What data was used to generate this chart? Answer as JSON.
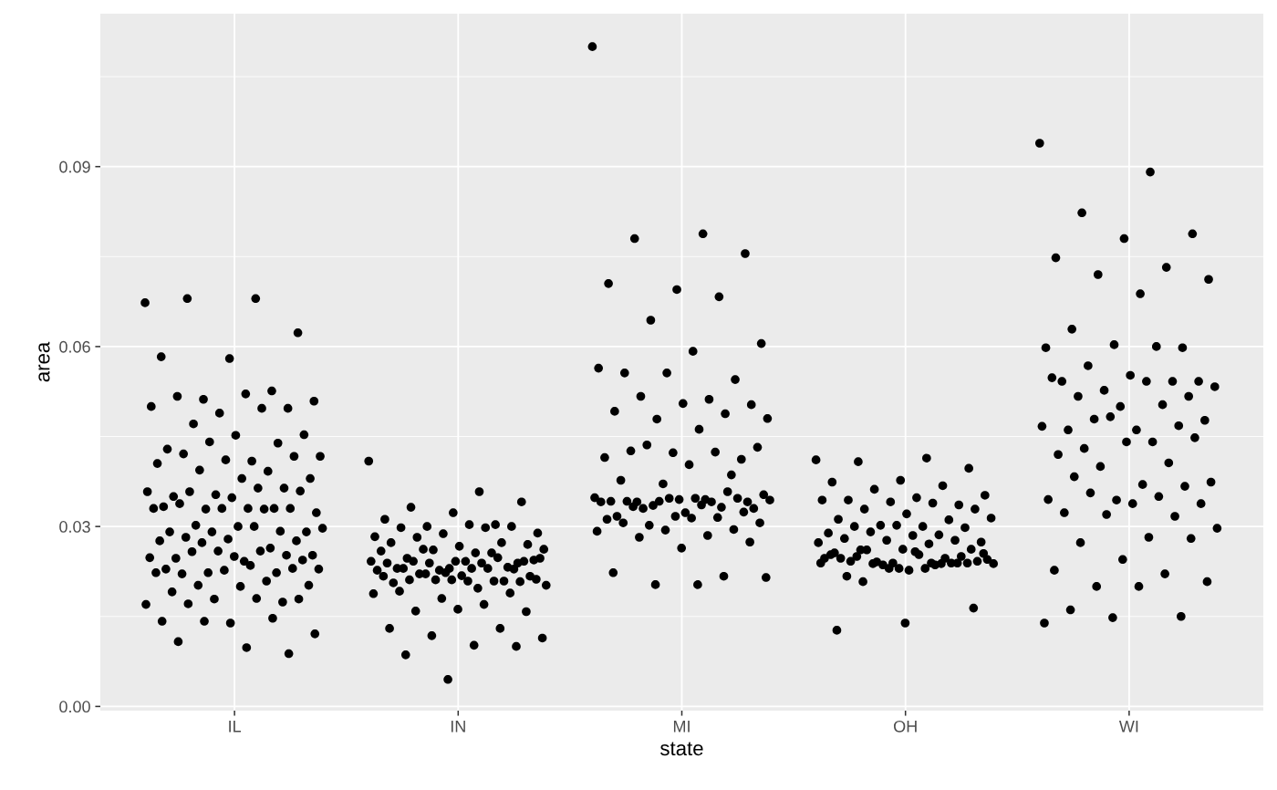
{
  "chart_data": {
    "type": "scatter",
    "xlabel": "state",
    "ylabel": "area",
    "categories": [
      "IL",
      "IN",
      "MI",
      "OH",
      "WI"
    ],
    "ylim": [
      -0.0007,
      0.1155
    ],
    "yticks": [
      {
        "value": 0,
        "label": "0.00"
      },
      {
        "value": 0.015,
        "label": null
      },
      {
        "value": 0.03,
        "label": "0.03"
      },
      {
        "value": 0.045,
        "label": null
      },
      {
        "value": 0.06,
        "label": "0.06"
      },
      {
        "value": 0.075,
        "label": null
      },
      {
        "value": 0.09,
        "label": "0.09"
      },
      {
        "value": 0.105,
        "label": null
      }
    ],
    "grid": true,
    "marker": "circle",
    "series": [
      {
        "color": "#000000",
        "x": [
          "IL",
          "IL",
          "IL",
          "IL",
          "IL",
          "IL",
          "IL",
          "IL",
          "IL",
          "IL",
          "IL",
          "IL",
          "IL",
          "IL",
          "IL",
          "IL",
          "IL",
          "IL",
          "IL",
          "IL",
          "IL",
          "IL",
          "IL",
          "IL",
          "IL",
          "IL",
          "IL",
          "IL",
          "IL",
          "IL",
          "IL",
          "IL",
          "IL",
          "IL",
          "IL",
          "IL",
          "IL",
          "IL",
          "IL",
          "IL",
          "IL",
          "IL",
          "IL",
          "IL",
          "IL",
          "IL",
          "IL",
          "IL",
          "IL",
          "IL",
          "IL",
          "IL",
          "IL",
          "IL",
          "IL",
          "IL",
          "IL",
          "IL",
          "IL",
          "IL",
          "IL",
          "IL",
          "IL",
          "IL",
          "IL",
          "IL",
          "IL",
          "IL",
          "IL",
          "IL",
          "IL",
          "IL",
          "IL",
          "IL",
          "IL",
          "IL",
          "IL",
          "IL",
          "IL",
          "IL",
          "IL",
          "IL",
          "IL",
          "IL",
          "IL",
          "IL",
          "IL",
          "IL",
          "IL",
          "IL",
          "IL",
          "IL",
          "IL",
          "IL",
          "IL",
          "IL",
          "IL",
          "IL",
          "IL",
          "IL",
          "IL"
        ],
        "values": [
          0.0673,
          0.068,
          0.068,
          0.0623,
          0.058,
          0.0583,
          0.0526,
          0.0512,
          0.0509,
          0.0521,
          0.0517,
          0.0497,
          0.0489,
          0.05,
          0.0497,
          0.0471,
          0.0453,
          0.0452,
          0.0429,
          0.0439,
          0.0441,
          0.0417,
          0.0409,
          0.0421,
          0.0417,
          0.0411,
          0.0405,
          0.0392,
          0.0394,
          0.038,
          0.038,
          0.035,
          0.0364,
          0.0353,
          0.0358,
          0.0364,
          0.0358,
          0.0359,
          0.0348,
          0.0333,
          0.033,
          0.0329,
          0.0323,
          0.033,
          0.0338,
          0.033,
          0.033,
          0.033,
          0.0329,
          0.0302,
          0.0291,
          0.03,
          0.0291,
          0.0292,
          0.0291,
          0.0297,
          0.03,
          0.0282,
          0.0276,
          0.0279,
          0.0276,
          0.0264,
          0.0273,
          0.0252,
          0.0242,
          0.0247,
          0.0252,
          0.0259,
          0.0248,
          0.0259,
          0.0258,
          0.0244,
          0.025,
          0.0229,
          0.0223,
          0.0223,
          0.0229,
          0.0235,
          0.0221,
          0.023,
          0.0227,
          0.0223,
          0.0209,
          0.0202,
          0.0202,
          0.02,
          0.0191,
          0.0174,
          0.0179,
          0.017,
          0.018,
          0.0171,
          0.0179,
          0.0139,
          0.0142,
          0.0147,
          0.0142,
          0.0121,
          0.0098,
          0.0108,
          0.0088
        ]
      },
      {
        "color": "#000000",
        "x": [
          "IN",
          "IN",
          "IN",
          "IN",
          "IN",
          "IN",
          "IN",
          "IN",
          "IN",
          "IN",
          "IN",
          "IN",
          "IN",
          "IN",
          "IN",
          "IN",
          "IN",
          "IN",
          "IN",
          "IN",
          "IN",
          "IN",
          "IN",
          "IN",
          "IN",
          "IN",
          "IN",
          "IN",
          "IN",
          "IN",
          "IN",
          "IN",
          "IN",
          "IN",
          "IN",
          "IN",
          "IN",
          "IN",
          "IN",
          "IN",
          "IN",
          "IN",
          "IN",
          "IN",
          "IN",
          "IN",
          "IN",
          "IN",
          "IN",
          "IN",
          "IN",
          "IN",
          "IN",
          "IN",
          "IN",
          "IN",
          "IN",
          "IN",
          "IN",
          "IN",
          "IN",
          "IN",
          "IN",
          "IN",
          "IN",
          "IN",
          "IN",
          "IN",
          "IN",
          "IN",
          "IN",
          "IN",
          "IN",
          "IN",
          "IN",
          "IN",
          "IN",
          "IN",
          "IN",
          "IN",
          "IN"
        ],
        "values": [
          0.0409,
          0.0358,
          0.0332,
          0.0341,
          0.0323,
          0.0312,
          0.0303,
          0.03,
          0.0289,
          0.0303,
          0.0298,
          0.03,
          0.0288,
          0.0283,
          0.0298,
          0.0282,
          0.027,
          0.0267,
          0.0273,
          0.0273,
          0.0261,
          0.0262,
          0.0256,
          0.0247,
          0.0239,
          0.023,
          0.0259,
          0.0256,
          0.0262,
          0.0244,
          0.0242,
          0.023,
          0.0232,
          0.0227,
          0.0242,
          0.0239,
          0.0242,
          0.0242,
          0.0242,
          0.0239,
          0.0248,
          0.0239,
          0.0247,
          0.023,
          0.023,
          0.0229,
          0.0223,
          0.0227,
          0.023,
          0.0221,
          0.0217,
          0.0218,
          0.0206,
          0.0209,
          0.0211,
          0.0202,
          0.0197,
          0.0211,
          0.0208,
          0.0211,
          0.0217,
          0.0209,
          0.0221,
          0.0212,
          0.0209,
          0.0192,
          0.0189,
          0.018,
          0.0188,
          0.017,
          0.0159,
          0.0158,
          0.0162,
          0.013,
          0.013,
          0.0118,
          0.0114,
          0.0102,
          0.0086,
          0.01,
          0.0045
        ]
      },
      {
        "color": "#000000",
        "x": [
          "MI",
          "MI",
          "MI",
          "MI",
          "MI",
          "MI",
          "MI",
          "MI",
          "MI",
          "MI",
          "MI",
          "MI",
          "MI",
          "MI",
          "MI",
          "MI",
          "MI",
          "MI",
          "MI",
          "MI",
          "MI",
          "MI",
          "MI",
          "MI",
          "MI",
          "MI",
          "MI",
          "MI",
          "MI",
          "MI",
          "MI",
          "MI",
          "MI",
          "MI",
          "MI",
          "MI",
          "MI",
          "MI",
          "MI",
          "MI",
          "MI",
          "MI",
          "MI",
          "MI",
          "MI",
          "MI",
          "MI",
          "MI",
          "MI",
          "MI",
          "MI",
          "MI",
          "MI",
          "MI",
          "MI",
          "MI",
          "MI",
          "MI",
          "MI",
          "MI",
          "MI",
          "MI",
          "MI",
          "MI",
          "MI",
          "MI",
          "MI",
          "MI",
          "MI",
          "MI",
          "MI",
          "MI",
          "MI",
          "MI",
          "MI",
          "MI",
          "MI",
          "MI"
        ],
        "values": [
          0.11,
          0.0788,
          0.078,
          0.0755,
          0.0695,
          0.0705,
          0.0683,
          0.0644,
          0.0605,
          0.0592,
          0.0556,
          0.0545,
          0.0556,
          0.0564,
          0.0512,
          0.0517,
          0.0503,
          0.0505,
          0.0492,
          0.0488,
          0.0479,
          0.048,
          0.0462,
          0.0426,
          0.0412,
          0.0423,
          0.0415,
          0.0424,
          0.0436,
          0.0432,
          0.0403,
          0.0377,
          0.0386,
          0.0371,
          0.0348,
          0.0345,
          0.0341,
          0.0341,
          0.0345,
          0.0342,
          0.0332,
          0.0335,
          0.0353,
          0.0347,
          0.0342,
          0.0347,
          0.0347,
          0.0341,
          0.0341,
          0.033,
          0.033,
          0.0323,
          0.0317,
          0.0358,
          0.0342,
          0.0344,
          0.0336,
          0.0333,
          0.0324,
          0.0317,
          0.0312,
          0.0315,
          0.0302,
          0.0306,
          0.0314,
          0.0306,
          0.0295,
          0.0294,
          0.0292,
          0.0285,
          0.0282,
          0.0274,
          0.0264,
          0.0223,
          0.0217,
          0.0203,
          0.0215,
          0.0203
        ]
      },
      {
        "color": "#000000",
        "x": [
          "OH",
          "OH",
          "OH",
          "OH",
          "OH",
          "OH",
          "OH",
          "OH",
          "OH",
          "OH",
          "OH",
          "OH",
          "OH",
          "OH",
          "OH",
          "OH",
          "OH",
          "OH",
          "OH",
          "OH",
          "OH",
          "OH",
          "OH",
          "OH",
          "OH",
          "OH",
          "OH",
          "OH",
          "OH",
          "OH",
          "OH",
          "OH",
          "OH",
          "OH",
          "OH",
          "OH",
          "OH",
          "OH",
          "OH",
          "OH",
          "OH",
          "OH",
          "OH",
          "OH",
          "OH",
          "OH",
          "OH",
          "OH",
          "OH",
          "OH",
          "OH",
          "OH",
          "OH",
          "OH",
          "OH",
          "OH",
          "OH",
          "OH",
          "OH",
          "OH",
          "OH",
          "OH",
          "OH",
          "OH",
          "OH",
          "OH",
          "OH",
          "OH",
          "OH",
          "OH",
          "OH",
          "OH",
          "OH",
          "OH"
        ],
        "values": [
          0.0411,
          0.0414,
          0.0408,
          0.0397,
          0.0377,
          0.0374,
          0.0368,
          0.0362,
          0.0352,
          0.0348,
          0.0344,
          0.0336,
          0.0341,
          0.0344,
          0.0339,
          0.0329,
          0.0329,
          0.0321,
          0.0312,
          0.0311,
          0.0302,
          0.0314,
          0.03,
          0.03,
          0.0298,
          0.0302,
          0.0289,
          0.0286,
          0.0291,
          0.0274,
          0.0285,
          0.028,
          0.0277,
          0.0277,
          0.0273,
          0.0271,
          0.0261,
          0.0262,
          0.0262,
          0.0256,
          0.0247,
          0.0241,
          0.0245,
          0.0253,
          0.0242,
          0.025,
          0.0239,
          0.0247,
          0.0236,
          0.0261,
          0.0242,
          0.0227,
          0.0247,
          0.0239,
          0.0236,
          0.0238,
          0.023,
          0.025,
          0.0239,
          0.023,
          0.0253,
          0.0238,
          0.0238,
          0.0255,
          0.0258,
          0.0217,
          0.0239,
          0.023,
          0.0239,
          0.0239,
          0.0208,
          0.0164,
          0.0139,
          0.0127
        ]
      },
      {
        "color": "#000000",
        "x": [
          "WI",
          "WI",
          "WI",
          "WI",
          "WI",
          "WI",
          "WI",
          "WI",
          "WI",
          "WI",
          "WI",
          "WI",
          "WI",
          "WI",
          "WI",
          "WI",
          "WI",
          "WI",
          "WI",
          "WI",
          "WI",
          "WI",
          "WI",
          "WI",
          "WI",
          "WI",
          "WI",
          "WI",
          "WI",
          "WI",
          "WI",
          "WI",
          "WI",
          "WI",
          "WI",
          "WI",
          "WI",
          "WI",
          "WI",
          "WI",
          "WI",
          "WI",
          "WI",
          "WI",
          "WI",
          "WI",
          "WI",
          "WI",
          "WI",
          "WI",
          "WI",
          "WI",
          "WI",
          "WI",
          "WI",
          "WI",
          "WI",
          "WI",
          "WI",
          "WI",
          "WI",
          "WI",
          "WI",
          "WI",
          "WI",
          "WI",
          "WI",
          "WI",
          "WI"
        ],
        "values": [
          0.0939,
          0.0891,
          0.0823,
          0.0788,
          0.078,
          0.0748,
          0.0732,
          0.072,
          0.0712,
          0.0688,
          0.0629,
          0.0598,
          0.0603,
          0.0598,
          0.06,
          0.0568,
          0.0542,
          0.0552,
          0.0542,
          0.0542,
          0.0527,
          0.0533,
          0.0542,
          0.0517,
          0.0517,
          0.05,
          0.0548,
          0.0503,
          0.0479,
          0.0477,
          0.0461,
          0.0461,
          0.0468,
          0.0483,
          0.0467,
          0.0441,
          0.043,
          0.0448,
          0.0441,
          0.042,
          0.0406,
          0.04,
          0.0374,
          0.037,
          0.0383,
          0.0367,
          0.0344,
          0.0345,
          0.035,
          0.0356,
          0.0338,
          0.0338,
          0.0323,
          0.0317,
          0.032,
          0.0297,
          0.0282,
          0.0273,
          0.028,
          0.0245,
          0.0227,
          0.0221,
          0.02,
          0.0208,
          0.02,
          0.0161,
          0.015,
          0.0148,
          0.0139
        ]
      }
    ]
  }
}
